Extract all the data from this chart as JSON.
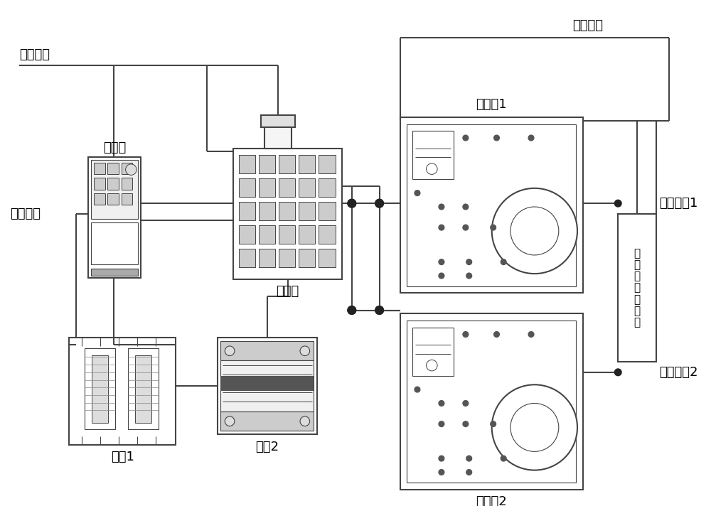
{
  "bg_color": "#ffffff",
  "line_color": "#444444",
  "text_color": "#000000",
  "font_size": 13,
  "labels": {
    "title_hv": "高压测量",
    "title_ctrl": "调压控制",
    "inverter": "变频器",
    "transformer_main": "变压器",
    "transformer1": "变压器1",
    "transformer2": "变压器2",
    "inductor1": "电感1",
    "inductor2": "电感2",
    "hv_input": "中压输入",
    "hv_out1": "高压输出1",
    "hv_out2": "高压输出2",
    "plasma_gen": "等\n离\n子\n体\n发\n生\n器"
  },
  "scale": [
    1000,
    712
  ]
}
